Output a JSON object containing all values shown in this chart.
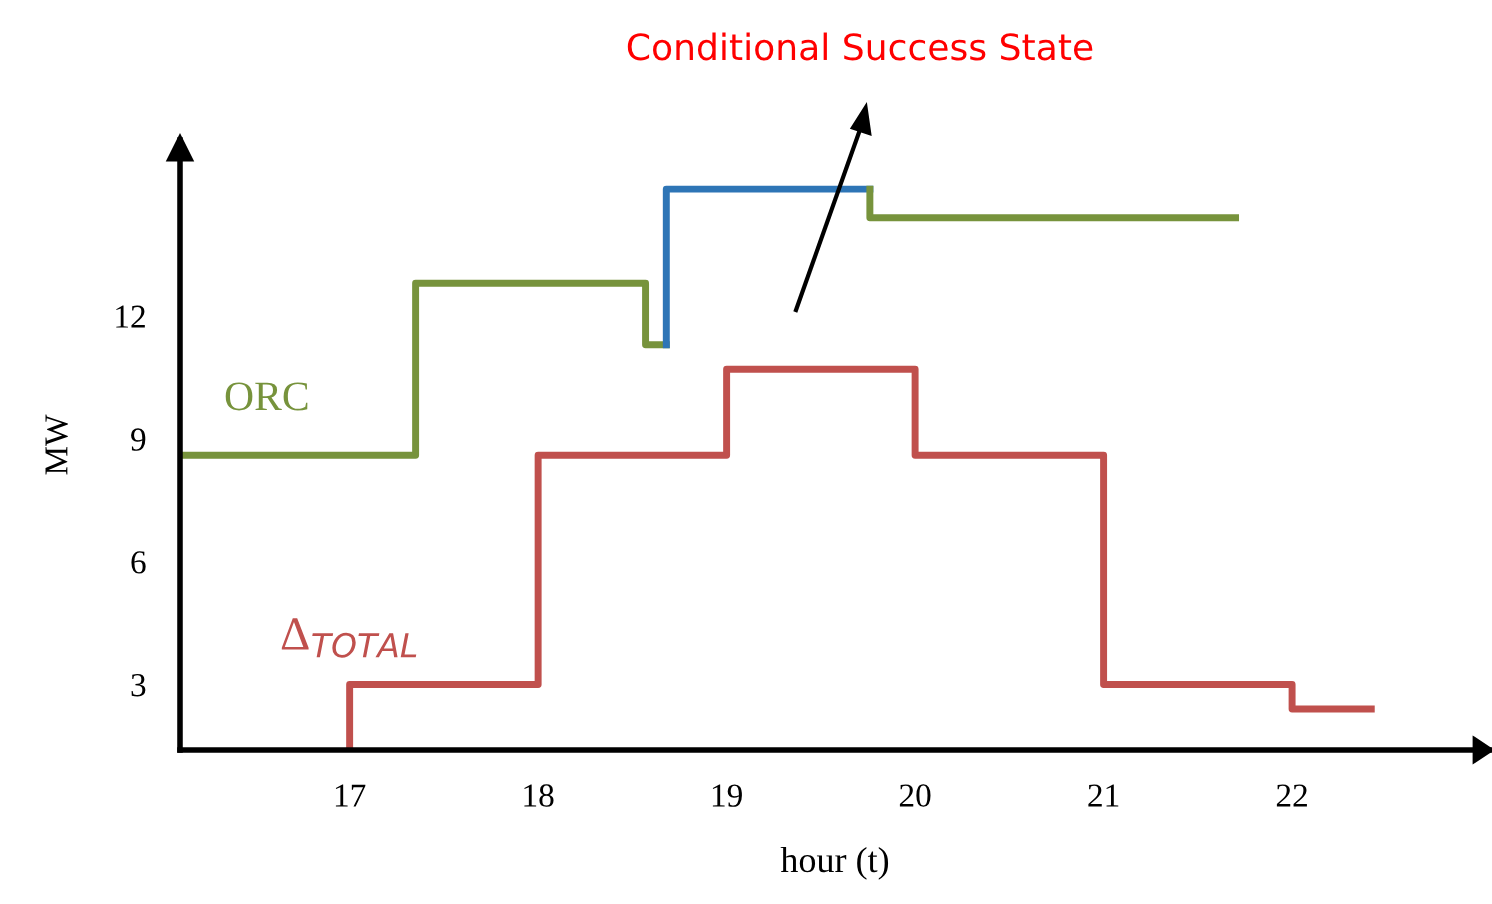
{
  "chart_data": {
    "type": "step",
    "xlabel": "hour (t)",
    "ylabel": "MW",
    "xlim": [
      16.1,
      23.05
    ],
    "ylim": [
      1.4,
      16.3
    ],
    "xticks": [
      17,
      18,
      19,
      20,
      21,
      22
    ],
    "yticks": [
      3,
      6,
      9,
      12
    ],
    "grid": false,
    "line_style": "solid",
    "series": [
      {
        "color": "#77933c",
        "x": [
          16.1,
          17.35,
          18.57,
          18.68
        ],
        "values": [
          8.6,
          12.8,
          11.3,
          11.3
        ]
      },
      {
        "color": "#2e75b6",
        "x": [
          18.68,
          18.68,
          19.76
        ],
        "values": [
          11.3,
          15.1,
          15.1
        ]
      },
      {
        "color": "#77933c",
        "x": [
          19.76,
          19.76,
          21.7
        ],
        "values": [
          15.1,
          14.4,
          14.4
        ]
      },
      {
        "color": "#c0504d",
        "x": [
          17,
          17,
          18,
          19,
          20,
          21,
          22,
          22.42
        ],
        "values": [
          1.4,
          3,
          8.6,
          10.7,
          8.6,
          3,
          2.4,
          2.4
        ]
      }
    ],
    "annotations": [
      "ORC",
      "Δ$_{TOTAL}$",
      "Conditional Success State"
    ]
  }
}
